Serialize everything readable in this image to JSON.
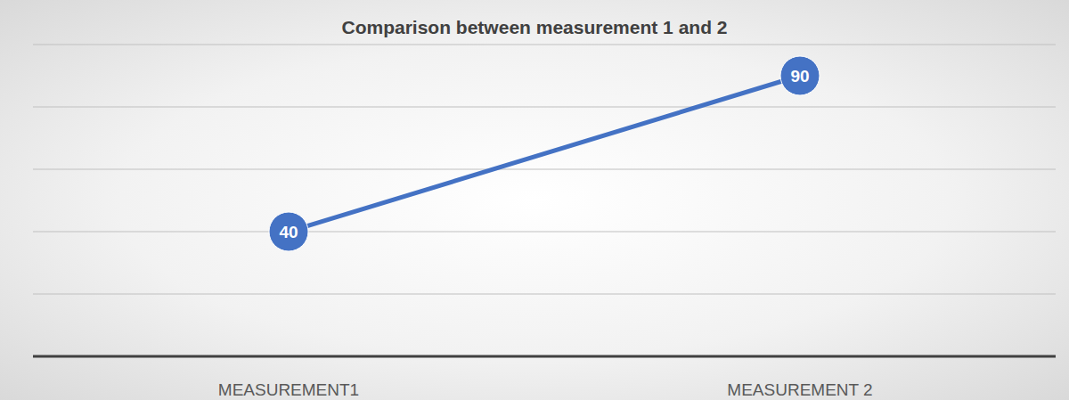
{
  "chart_data": {
    "type": "line",
    "title": "Comparison between measurement 1 and 2",
    "categories": [
      "MEASUREMENT1",
      "MEASUREMENT 2"
    ],
    "values": [
      40,
      90
    ],
    "color": "#4472c4",
    "ylim": [
      0,
      100
    ],
    "yticks": [
      0,
      20,
      40,
      60,
      80,
      100
    ],
    "grid": true,
    "data_labels": true,
    "marker": "circle",
    "tick_labels": "x"
  }
}
